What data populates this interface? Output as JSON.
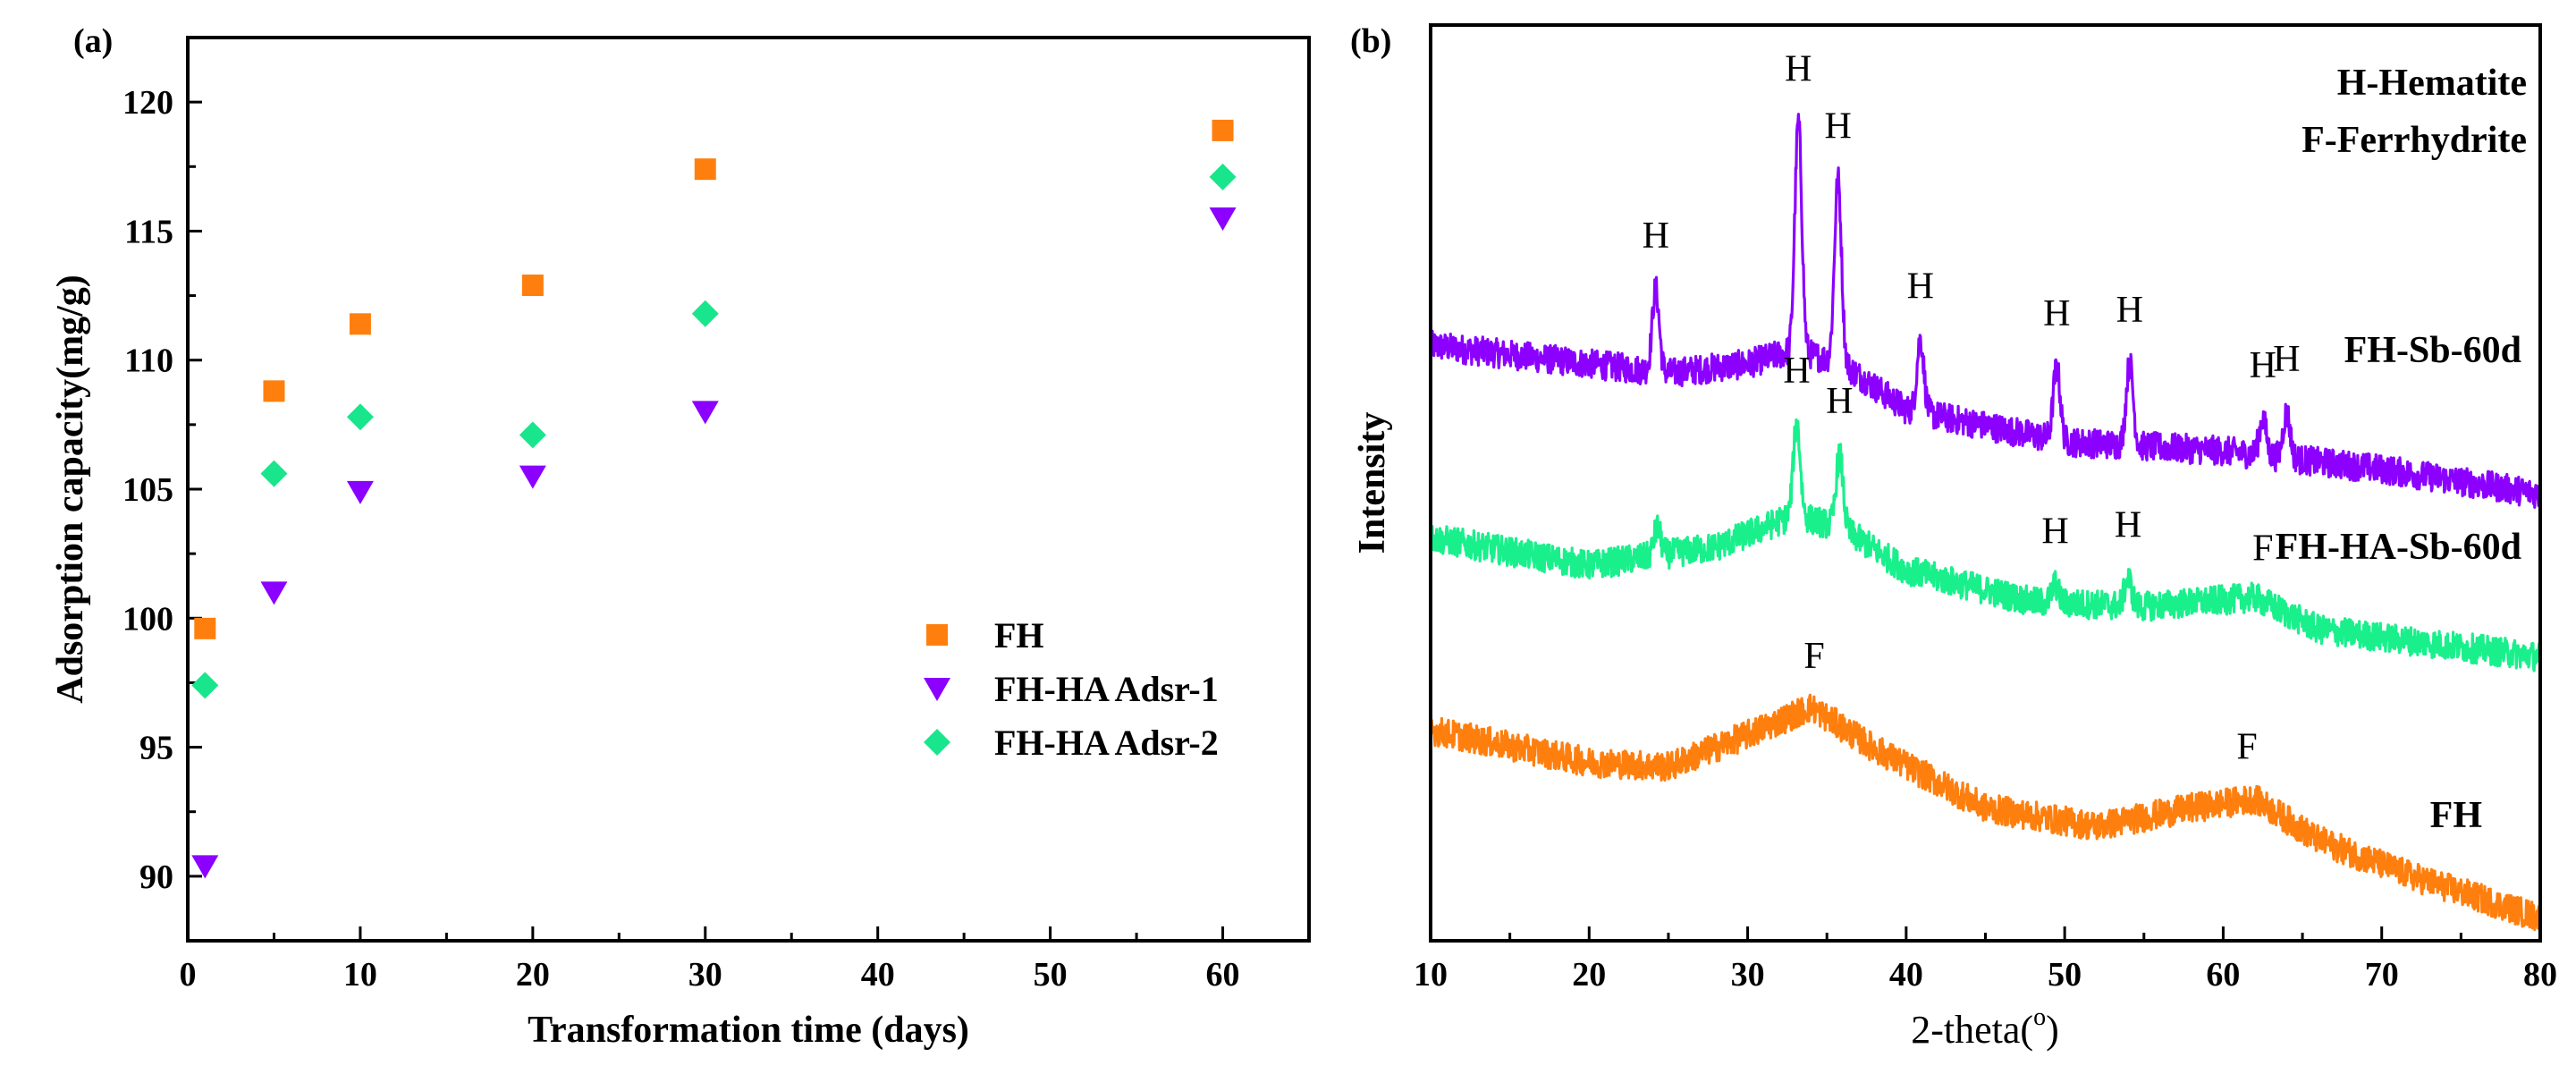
{
  "colors": {
    "FH": "#ff7f0e",
    "FH-HA Adsr-1": "#8b00ff",
    "FH-HA Adsr-2": "#19e68c",
    "xrd_FH": "#ff7f0e",
    "xrd_FH-HA-Sb-60d": "#19f08c",
    "xrd_FH-Sb-60d": "#8b00ff",
    "axis": "#000000"
  },
  "chart_data": [
    {
      "panel_label": "(a)",
      "type": "scatter",
      "title": "",
      "xlabel": "Transformation time (days)",
      "ylabel": "Adsorption capacity(mg/g)",
      "xlim": [
        0,
        65
      ],
      "ylim": [
        87.5,
        122.5
      ],
      "xticks": [
        0,
        10,
        20,
        30,
        40,
        50,
        60
      ],
      "yticks": [
        90,
        95,
        100,
        105,
        110,
        115,
        120
      ],
      "grid": false,
      "legend_position": "bottom-right",
      "series": [
        {
          "name": "FH",
          "marker": "square",
          "x": [
            1,
            5,
            10,
            20,
            30,
            60
          ],
          "values": [
            99.6,
            108.8,
            111.4,
            112.9,
            117.4,
            118.9
          ]
        },
        {
          "name": "FH-HA Adsr-1",
          "marker": "triangle-down",
          "x": [
            1,
            5,
            10,
            20,
            30,
            60
          ],
          "values": [
            90.4,
            101.0,
            104.9,
            105.5,
            108.0,
            115.5
          ]
        },
        {
          "name": "FH-HA Adsr-2",
          "marker": "diamond",
          "x": [
            1,
            5,
            10,
            20,
            30,
            60
          ],
          "values": [
            97.4,
            105.6,
            107.8,
            107.1,
            111.8,
            117.1
          ]
        }
      ]
    },
    {
      "panel_label": "(b)",
      "type": "line",
      "title": "",
      "xlabel": "2-theta(",
      "xlabel_sup": "o",
      "xlabel_end": ")",
      "ylabel": "Intensity",
      "xlim": [
        10,
        80
      ],
      "xticks": [
        10,
        20,
        30,
        40,
        50,
        60,
        70,
        80
      ],
      "ylim": [
        0,
        100
      ],
      "yticks": [],
      "grid": false,
      "key_lines": [
        "H-Hematite",
        "F-Ferrhydrite"
      ],
      "series": [
        {
          "name": "FH-Sb-60d",
          "baseline": {
            "x": [
              10,
              25,
              30,
              33,
              36,
              40,
              50,
              60,
              70,
              80
            ],
            "y": [
              65,
              62,
              63,
              64.5,
              63,
              58,
              54.5,
              53.5,
              51.5,
              48.8
            ]
          },
          "noise": 3.2,
          "peaks": [
            {
              "x": 24.2,
              "height": 9,
              "label": "H"
            },
            {
              "x": 33.2,
              "height": 25,
              "label": "H"
            },
            {
              "x": 35.7,
              "height": 20,
              "label": "H"
            },
            {
              "x": 40.9,
              "height": 8,
              "label": "H"
            },
            {
              "x": 49.5,
              "height": 8,
              "label": "H"
            },
            {
              "x": 54.1,
              "height": 9,
              "label": "H"
            },
            {
              "x": 62.5,
              "height": 4,
              "label": "H"
            },
            {
              "x": 64.0,
              "height": 5,
              "label": "H"
            }
          ]
        },
        {
          "name": "FH-HA-Sb-60d",
          "baseline": {
            "x": [
              10,
              20,
              28,
              33,
              36,
              40,
              48,
              55,
              62,
              66,
              80
            ],
            "y": [
              44,
              41,
              43,
              46.5,
              45,
              40.5,
              37,
              36.5,
              37.5,
              34,
              31
            ]
          },
          "noise": 3.2,
          "peaks": [
            {
              "x": 24.3,
              "height": 3,
              "label": null
            },
            {
              "x": 33.1,
              "height": 10,
              "label": "H"
            },
            {
              "x": 35.8,
              "height": 8,
              "label": "H"
            },
            {
              "x": 49.4,
              "height": 2,
              "label": "H"
            },
            {
              "x": 54.0,
              "height": 3,
              "label": "H"
            },
            {
              "x": 62.5,
              "height": 0,
              "label": "F"
            }
          ]
        },
        {
          "name": "FH",
          "baseline": {
            "x": [
              10,
              20,
              25,
              30,
              34,
              38,
              45,
              52,
              58,
              62,
              66,
              72,
              80
            ],
            "y": [
              23,
              19.5,
              19,
              22.5,
              25.5,
              21,
              14.5,
              12.5,
              14.5,
              15.5,
              11,
              7,
              2.5
            ]
          },
          "noise": 3.2,
          "peaks": [
            {
              "x": 34.2,
              "height": 0,
              "label": "F"
            },
            {
              "x": 61.5,
              "height": 0,
              "label": "F"
            }
          ]
        }
      ]
    }
  ]
}
